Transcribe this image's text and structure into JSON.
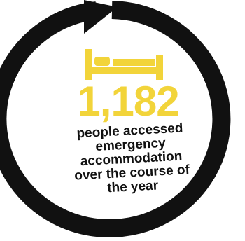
{
  "colors": {
    "accent": "#f2d43a",
    "ring": "#111111",
    "text": "#111111",
    "background": "#ffffff"
  },
  "icons": {
    "cycle": "circular-arrow-icon",
    "bed": "bed-icon"
  },
  "stat": {
    "number": "1,182",
    "description_lines": [
      "people accessed",
      "emergency",
      "accommodation",
      "over the course of",
      "the year"
    ]
  }
}
